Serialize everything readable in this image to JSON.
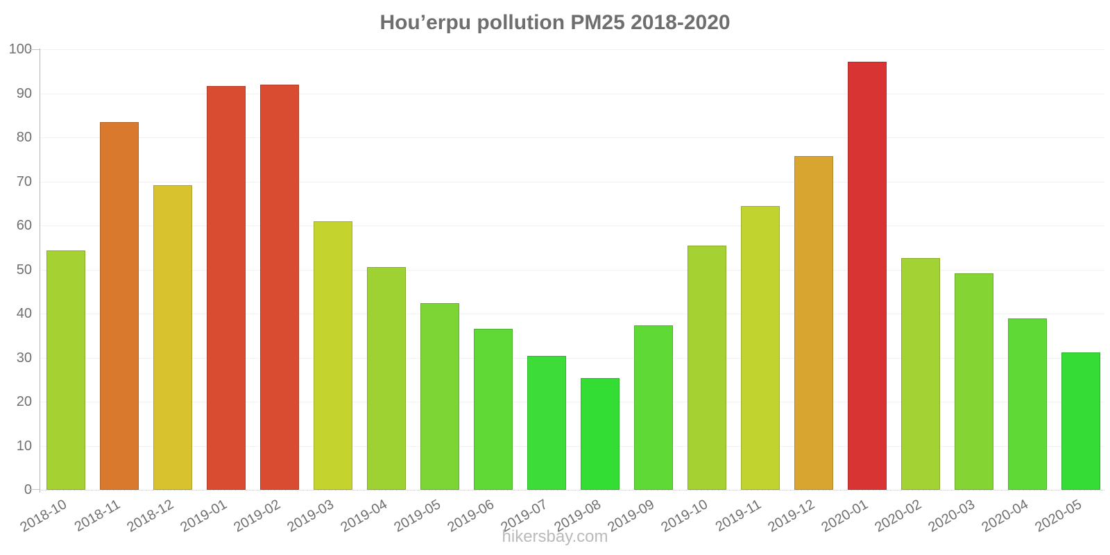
{
  "chart_data": {
    "type": "bar",
    "title": "Hou’erpu pollution PM25 2018-2020",
    "xlabel": "",
    "ylabel": "",
    "ylim": [
      0,
      100
    ],
    "y_ticks": [
      0,
      10,
      20,
      30,
      40,
      50,
      60,
      70,
      80,
      90,
      100
    ],
    "grid": "horizontal",
    "legend": "none",
    "categories": [
      "2018-10",
      "2018-11",
      "2018-12",
      "2019-01",
      "2019-02",
      "2019-03",
      "2019-04",
      "2019-05",
      "2019-06",
      "2019-07",
      "2019-08",
      "2019-09",
      "2019-10",
      "2019-11",
      "2019-12",
      "2020-01",
      "2020-02",
      "2020-03",
      "2020-04",
      "2020-05"
    ],
    "values": [
      54.4,
      83.4,
      69.2,
      91.6,
      91.9,
      61.0,
      50.5,
      42.4,
      36.6,
      30.4,
      25.3,
      37.3,
      55.5,
      64.4,
      75.8,
      97.1,
      52.6,
      49.1,
      38.9,
      31.2
    ],
    "bar_colors": [
      "#a6d133",
      "#d8792e",
      "#d8c22e",
      "#da4c31",
      "#da4c31",
      "#c4d32e",
      "#9ed233",
      "#7cd435",
      "#60d936",
      "#3edc38",
      "#33dd33",
      "#5ed936",
      "#a6d133",
      "#c1d32e",
      "#d8a530",
      "#d93434",
      "#a2d233",
      "#84d434",
      "#5ed936",
      "#36dc36"
    ]
  },
  "footer": {
    "text": "hikersbay.com"
  },
  "colors": {
    "background": "#ffffff",
    "title_text": "#6e6e6e",
    "tick_label": "#6f6f6f",
    "axis_line": "#b3b3b3",
    "gridline": "#f2f2f2",
    "baseline": "#c9c9c9",
    "footer_text": "#bababa"
  }
}
